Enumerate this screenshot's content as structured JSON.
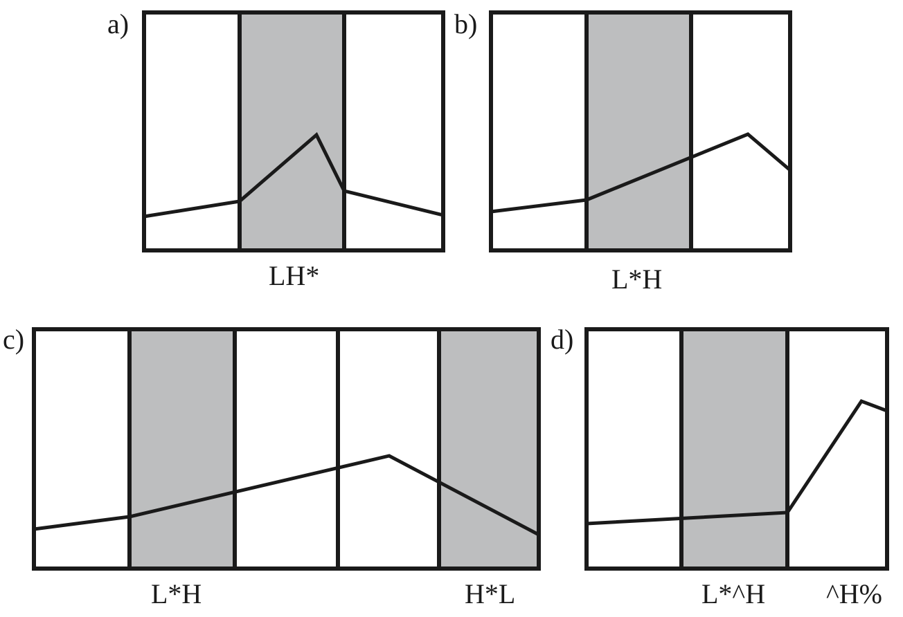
{
  "colors": {
    "shade": "#bdbebf",
    "stroke": "#1a1a1a",
    "background": "#ffffff"
  },
  "panels": [
    {
      "id": "a",
      "letter": "a)",
      "segments": [
        {
          "shaded": false
        },
        {
          "shaded": true
        },
        {
          "shaded": false
        }
      ],
      "labels": [
        "LH*"
      ]
    },
    {
      "id": "b",
      "letter": "b)",
      "segments": [
        {
          "shaded": false
        },
        {
          "shaded": true
        },
        {
          "shaded": false
        }
      ],
      "labels": [
        "L*H"
      ]
    },
    {
      "id": "c",
      "letter": "c)",
      "segments": [
        {
          "shaded": false
        },
        {
          "shaded": true
        },
        {
          "shaded": false
        },
        {
          "shaded": false
        },
        {
          "shaded": true
        }
      ],
      "labels": [
        "L*H",
        "H*L"
      ]
    },
    {
      "id": "d",
      "letter": "d)",
      "segments": [
        {
          "shaded": false
        },
        {
          "shaded": true
        },
        {
          "shaded": false
        }
      ],
      "labels": [
        "L*^H",
        "^H%"
      ]
    }
  ]
}
